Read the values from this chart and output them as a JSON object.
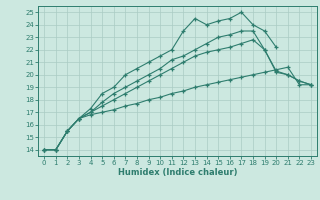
{
  "xlabel": "Humidex (Indice chaleur)",
  "ylabel": "",
  "xlim": [
    -0.5,
    23.5
  ],
  "ylim": [
    13.5,
    25.5
  ],
  "xticks": [
    0,
    1,
    2,
    3,
    4,
    5,
    6,
    7,
    8,
    9,
    10,
    11,
    12,
    13,
    14,
    15,
    16,
    17,
    18,
    19,
    20,
    21,
    22,
    23
  ],
  "yticks": [
    14,
    15,
    16,
    17,
    18,
    19,
    20,
    21,
    22,
    23,
    24,
    25
  ],
  "bg_color": "#cce8e0",
  "line_color": "#2e7d6e",
  "grid_color": "#aaccc4",
  "lines": [
    {
      "x": [
        0,
        1,
        2,
        3,
        4,
        5,
        6,
        7,
        8,
        9,
        10,
        11,
        12,
        13,
        14,
        15,
        16,
        17,
        18,
        19,
        20,
        21,
        22,
        23
      ],
      "y": [
        14,
        14,
        15.5,
        16.5,
        16.8,
        17.0,
        17.2,
        17.5,
        17.7,
        18.0,
        18.2,
        18.5,
        18.7,
        19.0,
        19.2,
        19.4,
        19.6,
        19.8,
        20.0,
        20.2,
        20.4,
        20.6,
        19.2,
        19.2
      ]
    },
    {
      "x": [
        0,
        1,
        2,
        3,
        4,
        5,
        6,
        7,
        8,
        9,
        10,
        11,
        12,
        13,
        14,
        15,
        16,
        17,
        18,
        19,
        20,
        21,
        22,
        23
      ],
      "y": [
        14,
        14,
        15.5,
        16.5,
        17.0,
        17.5,
        18.0,
        18.5,
        19.0,
        19.5,
        20.0,
        20.5,
        21.0,
        21.5,
        21.8,
        22.0,
        22.2,
        22.5,
        22.8,
        22.0,
        20.3,
        20.0,
        19.5,
        19.2
      ]
    },
    {
      "x": [
        0,
        1,
        2,
        3,
        4,
        5,
        6,
        7,
        8,
        9,
        10,
        11,
        12,
        13,
        14,
        15,
        16,
        17,
        18,
        19,
        20
      ],
      "y": [
        14,
        14,
        15.5,
        16.5,
        17.3,
        18.5,
        19.0,
        20.0,
        20.5,
        21.0,
        21.5,
        22.0,
        23.5,
        24.5,
        24.0,
        24.3,
        24.5,
        25.0,
        24.0,
        23.5,
        22.2
      ]
    },
    {
      "x": [
        0,
        1,
        2,
        3,
        4,
        5,
        6,
        7,
        8,
        9,
        10,
        11,
        12,
        13,
        14,
        15,
        16,
        17,
        18,
        19,
        20,
        21,
        22,
        23
      ],
      "y": [
        14,
        14,
        15.5,
        16.5,
        17.0,
        17.8,
        18.5,
        19.0,
        19.5,
        20.0,
        20.5,
        21.2,
        21.5,
        22.0,
        22.5,
        23.0,
        23.2,
        23.5,
        23.5,
        22.0,
        20.2,
        20.0,
        19.5,
        19.2
      ]
    }
  ]
}
